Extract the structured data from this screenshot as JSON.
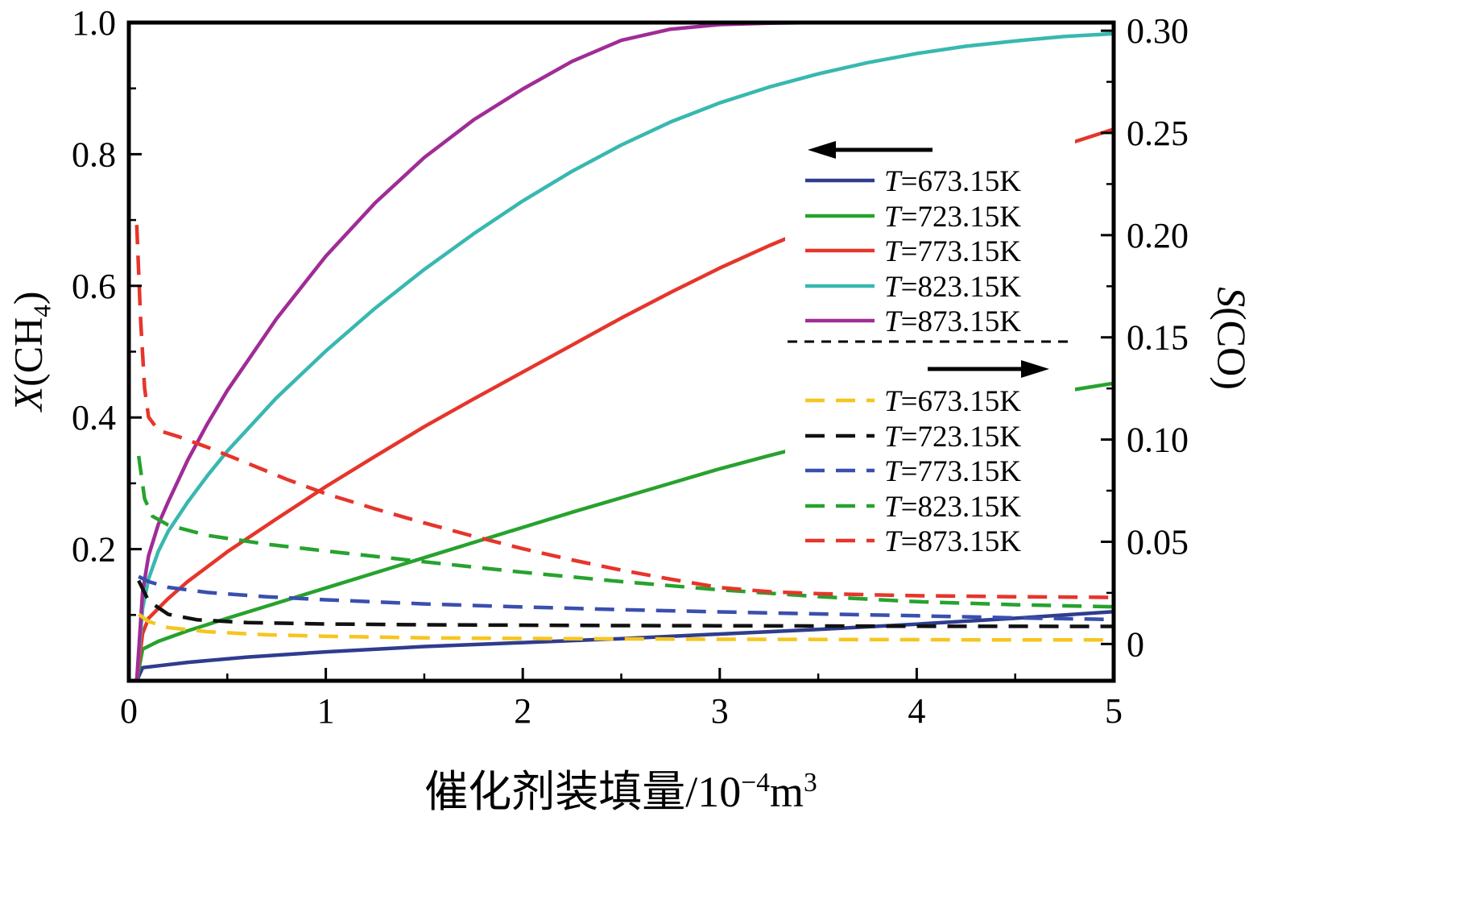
{
  "chart_data": {
    "type": "line",
    "x_axis": {
      "label_parts": [
        {
          "t": "催化剂装填量/10"
        },
        {
          "t": "−4",
          "sup": true
        },
        {
          "t": "m"
        },
        {
          "t": "3",
          "sup": true
        }
      ],
      "range": [
        0,
        5
      ],
      "major": [
        0,
        1,
        2,
        3,
        4,
        5
      ],
      "labels": [
        "0",
        "1",
        "2",
        "3",
        "4",
        "5"
      ],
      "minor_step": 0.5
    },
    "left_axis": {
      "label_parts": [
        {
          "t": "X",
          "italic": true
        },
        {
          "t": "(CH"
        },
        {
          "t": "4",
          "sub": true
        },
        {
          "t": ")"
        }
      ],
      "range": [
        0,
        1.0
      ],
      "major": [
        0.2,
        0.4,
        0.6,
        0.8,
        1.0
      ],
      "labels": [
        "0.2",
        "0.4",
        "0.6",
        "0.8",
        "1.0"
      ],
      "minor_step": 0.1
    },
    "right_axis": {
      "label_parts": [
        {
          "t": "S",
          "italic": true
        },
        {
          "t": "(CO)"
        }
      ],
      "range": [
        -0.018,
        0.304
      ],
      "major": [
        0,
        0.05,
        0.1,
        0.15,
        0.2,
        0.25,
        0.3
      ],
      "labels": [
        "0",
        "0.05",
        "0.10",
        "0.15",
        "0.20",
        "0.25",
        "0.30"
      ],
      "minor_step": 0.025
    },
    "series": [
      {
        "id": "X-673",
        "name": "T=673.15K",
        "axis": "left_axis",
        "style": "solid",
        "color": "#2f3c8e",
        "points": [
          [
            0.04,
            0
          ],
          [
            0.07,
            0.02
          ],
          [
            0.3,
            0.028
          ],
          [
            0.6,
            0.036
          ],
          [
            1,
            0.044
          ],
          [
            1.5,
            0.052
          ],
          [
            2,
            0.058
          ],
          [
            2.5,
            0.064
          ],
          [
            3,
            0.071
          ],
          [
            3.5,
            0.078
          ],
          [
            4,
            0.086
          ],
          [
            4.5,
            0.095
          ],
          [
            5,
            0.105
          ]
        ]
      },
      {
        "id": "X-723",
        "name": "T=723.15K",
        "axis": "left_axis",
        "style": "solid",
        "color": "#27a22e",
        "points": [
          [
            0.04,
            0
          ],
          [
            0.07,
            0.048
          ],
          [
            0.15,
            0.06
          ],
          [
            0.3,
            0.076
          ],
          [
            0.5,
            0.095
          ],
          [
            0.75,
            0.118
          ],
          [
            1,
            0.141
          ],
          [
            1.25,
            0.164
          ],
          [
            1.5,
            0.187
          ],
          [
            1.75,
            0.21
          ],
          [
            2,
            0.233
          ],
          [
            2.25,
            0.256
          ],
          [
            2.5,
            0.278
          ],
          [
            2.75,
            0.3
          ],
          [
            3,
            0.322
          ],
          [
            3.25,
            0.342
          ],
          [
            3.5,
            0.361
          ],
          [
            3.75,
            0.379
          ],
          [
            4,
            0.396
          ],
          [
            4.25,
            0.411
          ],
          [
            4.5,
            0.426
          ],
          [
            4.75,
            0.44
          ],
          [
            5,
            0.452
          ]
        ]
      },
      {
        "id": "X-773",
        "name": "T=773.15K",
        "axis": "left_axis",
        "style": "solid",
        "color": "#e6352b",
        "points": [
          [
            0.04,
            0
          ],
          [
            0.07,
            0.072
          ],
          [
            0.1,
            0.095
          ],
          [
            0.2,
            0.125
          ],
          [
            0.3,
            0.151
          ],
          [
            0.5,
            0.196
          ],
          [
            0.75,
            0.246
          ],
          [
            1,
            0.295
          ],
          [
            1.25,
            0.341
          ],
          [
            1.5,
            0.386
          ],
          [
            1.75,
            0.428
          ],
          [
            2,
            0.469
          ],
          [
            2.25,
            0.51
          ],
          [
            2.5,
            0.551
          ],
          [
            2.75,
            0.59
          ],
          [
            3,
            0.627
          ],
          [
            3.25,
            0.661
          ],
          [
            3.5,
            0.692
          ],
          [
            3.75,
            0.719
          ],
          [
            4,
            0.744
          ],
          [
            4.25,
            0.768
          ],
          [
            4.5,
            0.791
          ],
          [
            4.75,
            0.814
          ],
          [
            5,
            0.838
          ]
        ]
      },
      {
        "id": "X-823",
        "name": "T=823.15K",
        "axis": "left_axis",
        "style": "solid",
        "color": "#38b8b0",
        "points": [
          [
            0.04,
            0
          ],
          [
            0.07,
            0.11
          ],
          [
            0.1,
            0.155
          ],
          [
            0.15,
            0.197
          ],
          [
            0.2,
            0.227
          ],
          [
            0.3,
            0.272
          ],
          [
            0.4,
            0.312
          ],
          [
            0.5,
            0.349
          ],
          [
            0.75,
            0.43
          ],
          [
            1,
            0.501
          ],
          [
            1.25,
            0.566
          ],
          [
            1.5,
            0.625
          ],
          [
            1.75,
            0.679
          ],
          [
            2,
            0.729
          ],
          [
            2.25,
            0.774
          ],
          [
            2.5,
            0.814
          ],
          [
            2.75,
            0.849
          ],
          [
            3,
            0.878
          ],
          [
            3.25,
            0.902
          ],
          [
            3.5,
            0.922
          ],
          [
            3.75,
            0.939
          ],
          [
            4,
            0.953
          ],
          [
            4.25,
            0.964
          ],
          [
            4.5,
            0.972
          ],
          [
            4.75,
            0.979
          ],
          [
            5,
            0.983
          ]
        ]
      },
      {
        "id": "X-873",
        "name": "T=873.15K",
        "axis": "left_axis",
        "style": "solid",
        "color": "#a02c96",
        "points": [
          [
            0.04,
            0
          ],
          [
            0.07,
            0.135
          ],
          [
            0.1,
            0.19
          ],
          [
            0.15,
            0.238
          ],
          [
            0.2,
            0.272
          ],
          [
            0.3,
            0.336
          ],
          [
            0.4,
            0.391
          ],
          [
            0.5,
            0.441
          ],
          [
            0.75,
            0.55
          ],
          [
            1,
            0.645
          ],
          [
            1.25,
            0.726
          ],
          [
            1.5,
            0.795
          ],
          [
            1.75,
            0.852
          ],
          [
            2,
            0.899
          ],
          [
            2.25,
            0.941
          ],
          [
            2.5,
            0.973
          ],
          [
            2.75,
            0.99
          ],
          [
            3,
            0.997
          ],
          [
            3.25,
            0.999
          ],
          [
            3.5,
            1
          ],
          [
            4,
            1
          ],
          [
            4.5,
            1
          ],
          [
            5,
            1
          ]
        ]
      },
      {
        "id": "S-673",
        "name": "T=673.15K",
        "axis": "right_axis",
        "style": "dashed",
        "color": "#f6c51f",
        "points": [
          [
            0.05,
            0.0145
          ],
          [
            0.1,
            0.011
          ],
          [
            0.2,
            0.008
          ],
          [
            0.4,
            0.006
          ],
          [
            0.7,
            0.0045
          ],
          [
            1,
            0.0038
          ],
          [
            1.5,
            0.003
          ],
          [
            2,
            0.0027
          ],
          [
            2.5,
            0.0025
          ],
          [
            3,
            0.0023
          ],
          [
            3.5,
            0.0022
          ],
          [
            4,
            0.0021
          ],
          [
            4.5,
            0.002
          ],
          [
            5,
            0.002
          ]
        ]
      },
      {
        "id": "S-723",
        "name": "T=723.15K",
        "axis": "right_axis",
        "style": "dashed",
        "color": "#111111",
        "points": [
          [
            0.05,
            0.031
          ],
          [
            0.1,
            0.021
          ],
          [
            0.2,
            0.0145
          ],
          [
            0.35,
            0.0118
          ],
          [
            0.6,
            0.0105
          ],
          [
            1,
            0.0098
          ],
          [
            1.5,
            0.0094
          ],
          [
            2,
            0.0092
          ],
          [
            2.5,
            0.009
          ],
          [
            3,
            0.0089
          ],
          [
            4,
            0.0087
          ],
          [
            5,
            0.0086
          ]
        ]
      },
      {
        "id": "S-773",
        "name": "T=773.15K",
        "axis": "right_axis",
        "style": "dashed",
        "color": "#3a4fae",
        "points": [
          [
            0.05,
            0.033
          ],
          [
            0.1,
            0.0305
          ],
          [
            0.2,
            0.0277
          ],
          [
            0.4,
            0.0252
          ],
          [
            0.7,
            0.0231
          ],
          [
            1,
            0.0216
          ],
          [
            1.5,
            0.0196
          ],
          [
            2,
            0.0181
          ],
          [
            2.5,
            0.0168
          ],
          [
            3,
            0.0157
          ],
          [
            3.5,
            0.0147
          ],
          [
            4,
            0.0138
          ],
          [
            4.5,
            0.0128
          ],
          [
            5,
            0.012
          ]
        ]
      },
      {
        "id": "S-823",
        "name": "T=823.15K",
        "axis": "right_axis",
        "style": "dashed",
        "color": "#27a22e",
        "points": [
          [
            0.05,
            0.092
          ],
          [
            0.08,
            0.071
          ],
          [
            0.12,
            0.0625
          ],
          [
            0.2,
            0.0582
          ],
          [
            0.4,
            0.0531
          ],
          [
            0.7,
            0.0488
          ],
          [
            1,
            0.0455
          ],
          [
            1.5,
            0.0402
          ],
          [
            2,
            0.0351
          ],
          [
            2.5,
            0.0305
          ],
          [
            3,
            0.0265
          ],
          [
            3.5,
            0.0232
          ],
          [
            4,
            0.0207
          ],
          [
            4.5,
            0.0192
          ],
          [
            5,
            0.0182
          ]
        ]
      },
      {
        "id": "S-873",
        "name": "T=873.15K",
        "axis": "right_axis",
        "style": "dashed",
        "color": "#e6352b",
        "points": [
          [
            0.04,
            0.205
          ],
          [
            0.06,
            0.158
          ],
          [
            0.08,
            0.125
          ],
          [
            0.1,
            0.111
          ],
          [
            0.15,
            0.1045
          ],
          [
            0.25,
            0.1015
          ],
          [
            0.4,
            0.0962
          ],
          [
            0.6,
            0.0885
          ],
          [
            0.8,
            0.0806
          ],
          [
            1,
            0.0735
          ],
          [
            1.25,
            0.0661
          ],
          [
            1.5,
            0.0592
          ],
          [
            1.75,
            0.0527
          ],
          [
            2,
            0.0466
          ],
          [
            2.25,
            0.0411
          ],
          [
            2.5,
            0.0361
          ],
          [
            2.75,
            0.0317
          ],
          [
            3,
            0.0276
          ],
          [
            3.25,
            0.0256
          ],
          [
            3.5,
            0.0246
          ],
          [
            4,
            0.0236
          ],
          [
            4.5,
            0.0231
          ],
          [
            5,
            0.0228
          ]
        ]
      }
    ]
  },
  "legend": {
    "solid_group": {
      "arrow": "left",
      "items": [
        {
          "i": "T",
          "t": "=673.15K",
          "color": "#2f3c8e"
        },
        {
          "i": "T",
          "t": "=723.15K",
          "color": "#27a22e"
        },
        {
          "i": "T",
          "t": "=773.15K",
          "color": "#e6352b"
        },
        {
          "i": "T",
          "t": "=823.15K",
          "color": "#38b8b0"
        },
        {
          "i": "T",
          "t": "=873.15K",
          "color": "#a02c96"
        }
      ]
    },
    "dashed_group": {
      "arrow": "right",
      "items": [
        {
          "i": "T",
          "t": "=673.15K",
          "color": "#f6c51f"
        },
        {
          "i": "T",
          "t": "=723.15K",
          "color": "#111111"
        },
        {
          "i": "T",
          "t": "=773.15K",
          "color": "#3a4fae"
        },
        {
          "i": "T",
          "t": "=823.15K",
          "color": "#27a22e"
        },
        {
          "i": "T",
          "t": "=873.15K",
          "color": "#e6352b"
        }
      ]
    }
  }
}
